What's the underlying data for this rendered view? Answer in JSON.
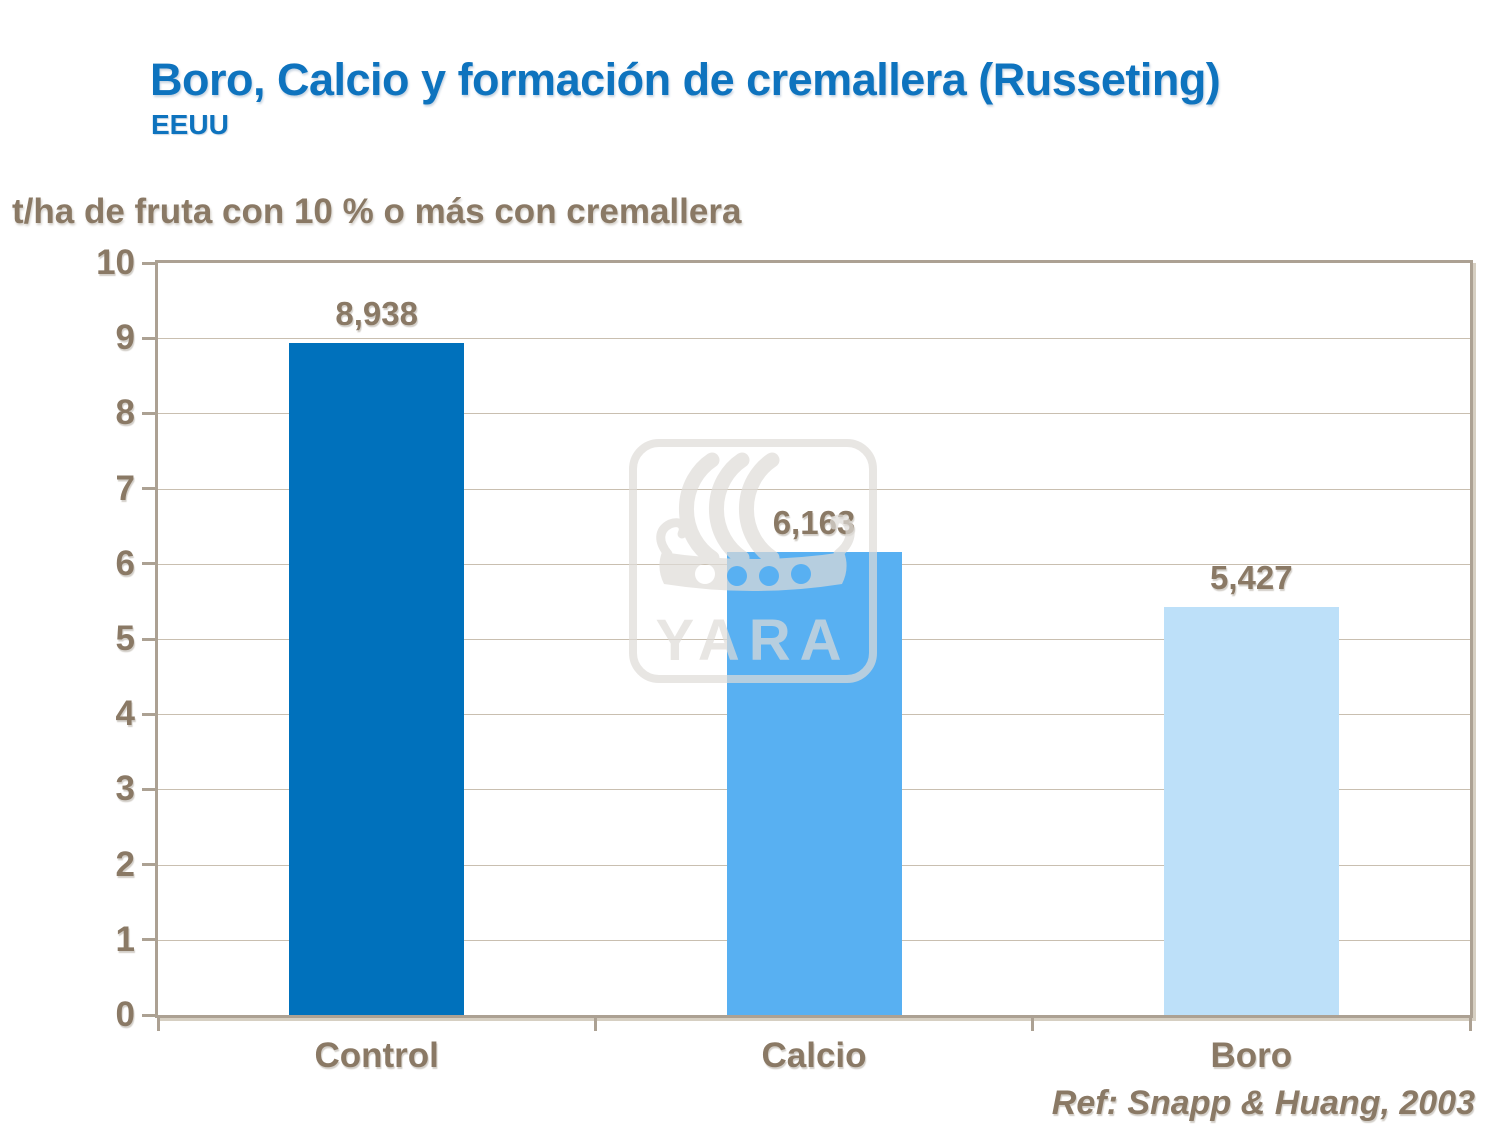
{
  "header": {
    "title": "Boro, Calcio y formación de cremallera (Russeting)",
    "subtitle": "EEUU"
  },
  "chart_data": {
    "type": "bar",
    "title": "t/ha de fruta con 10 % o más con cremallera",
    "ylabel": "t/ha de fruta con 10 % o más con cremallera",
    "xlabel": "",
    "categories": [
      "Control",
      "Calcio",
      "Boro"
    ],
    "values": [
      8.938,
      6.163,
      5.427
    ],
    "value_labels": [
      "8,938",
      "6,163",
      "5,427"
    ],
    "bar_colors": [
      "#0071BC",
      "#58B0F2",
      "#BDE0F9"
    ],
    "ylim": [
      0,
      10
    ],
    "ytick_step": 1,
    "grid": "horizontal",
    "legend": "none"
  },
  "footer": {
    "reference": "Ref: Snapp & Huang, 2003"
  },
  "watermark": {
    "label": "YARA"
  },
  "colors": {
    "title_blue": "#0E73BE",
    "text_brown": "#8A7965",
    "gridline": "#C9BFB0",
    "frame": "#ACA193",
    "frame_shadow": "#D6CFC2",
    "watermark_gray": "#DFDCD8"
  }
}
